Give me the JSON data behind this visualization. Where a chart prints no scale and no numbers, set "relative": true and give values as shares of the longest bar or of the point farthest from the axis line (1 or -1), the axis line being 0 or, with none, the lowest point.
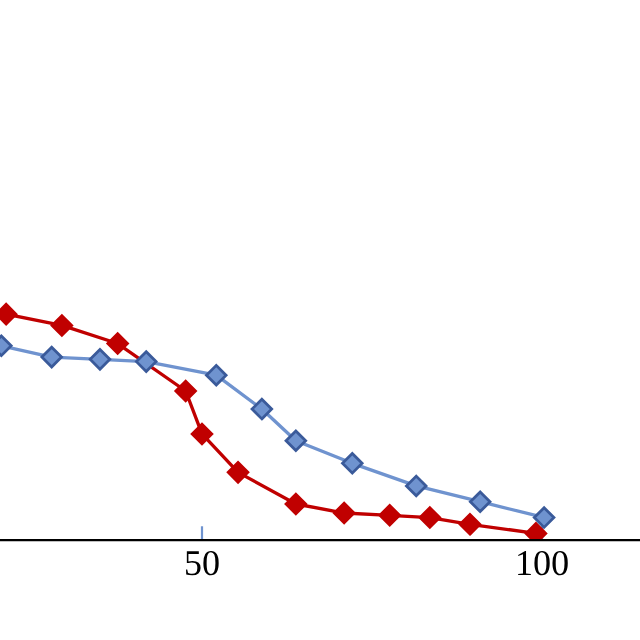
{
  "chart_data": {
    "type": "line",
    "relative": true,
    "marker": "diamond",
    "line_style": "solid",
    "grid": false,
    "legend": false,
    "tick_labels": "x",
    "xlim": [
      20.3,
      114.4
    ],
    "xticks": [
      50,
      100
    ],
    "series": [
      {
        "color": "#c00000",
        "x": [
          21.2,
          29.4,
          37.6,
          47.6,
          50,
          55.3,
          63.8,
          70.9,
          77.6,
          83.5,
          89.4,
          99.1
        ],
        "values": [
          1.0,
          0.95,
          0.87,
          0.66,
          0.47,
          0.3,
          0.16,
          0.12,
          0.11,
          0.1,
          0.07,
          0.03
        ]
      },
      {
        "color": "#6f93cf",
        "x": [
          20.5,
          27.9,
          35.0,
          41.8,
          52.1,
          58.8,
          63.8,
          72.1,
          81.5,
          90.9,
          100.3
        ],
        "values": [
          0.86,
          0.81,
          0.8,
          0.79,
          0.73,
          0.58,
          0.44,
          0.34,
          0.24,
          0.17,
          0.1
        ]
      }
    ]
  }
}
